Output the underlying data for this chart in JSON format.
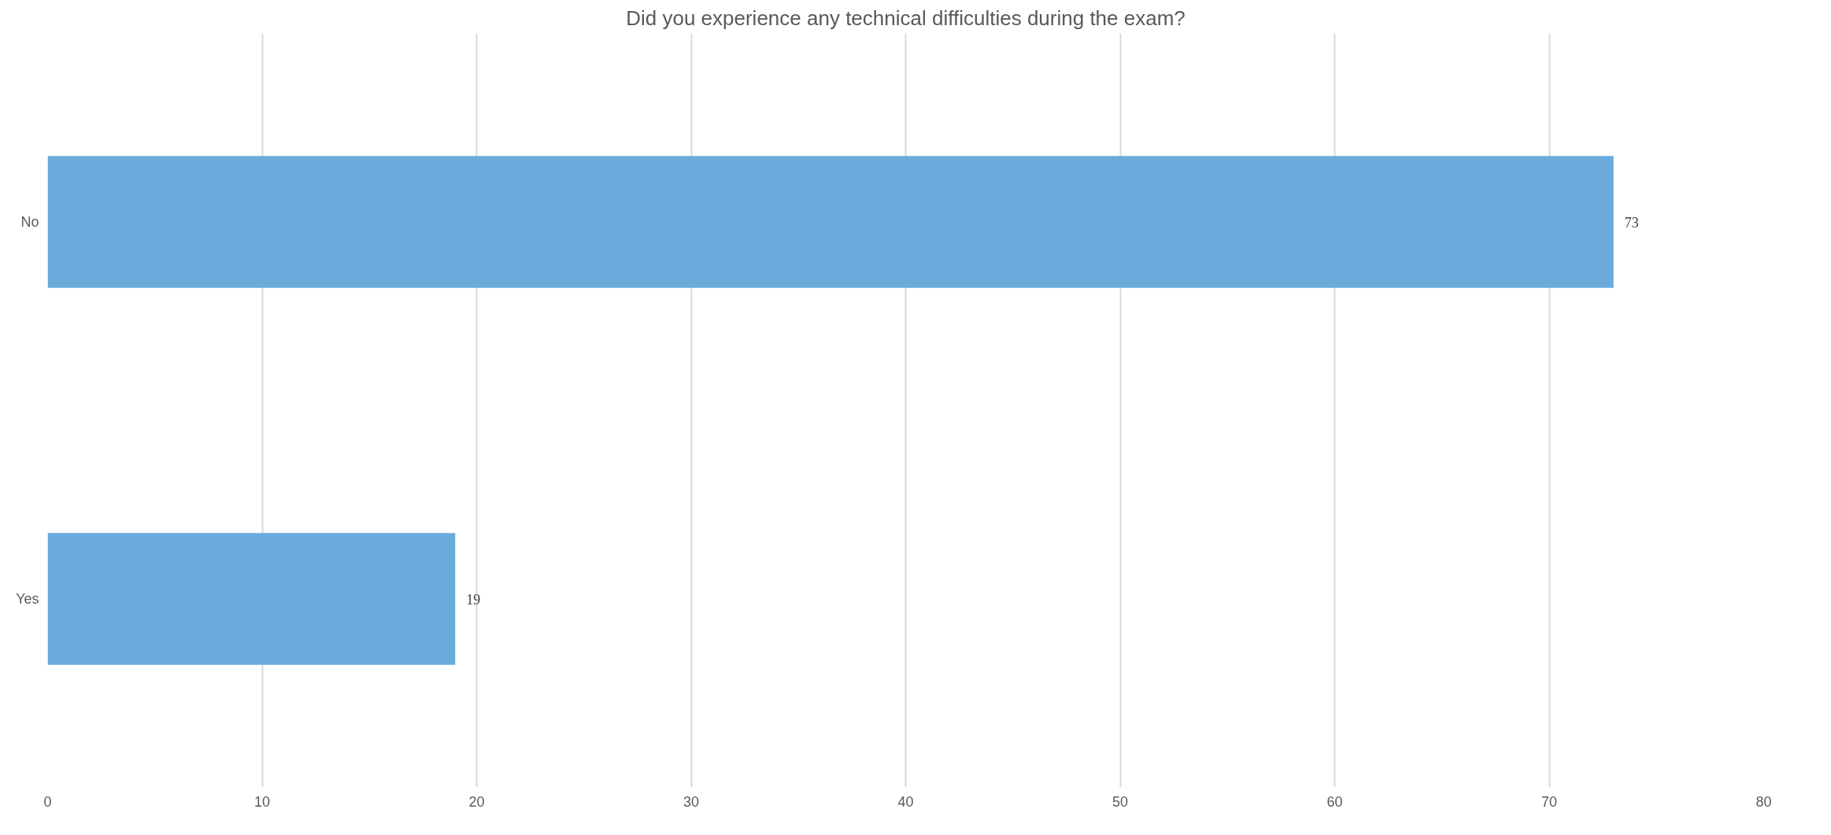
{
  "chart_data": {
    "type": "bar",
    "orientation": "horizontal",
    "title": "Did you experience any technical difficulties during the exam?",
    "categories": [
      "No",
      "Yes"
    ],
    "values": [
      73,
      19
    ],
    "color": "#6aabdc",
    "xlim": [
      0,
      80
    ],
    "xticks": [
      0,
      10,
      20,
      30,
      40,
      50,
      60,
      70,
      80
    ],
    "grid": "x",
    "data_labels": true
  }
}
